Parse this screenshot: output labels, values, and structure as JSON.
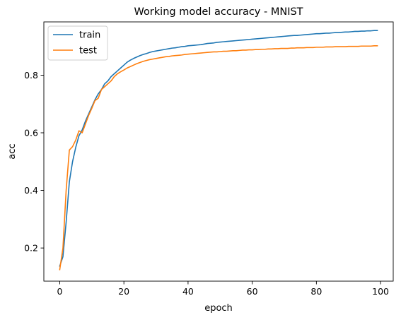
{
  "chart_data": {
    "type": "line",
    "title": "Working model accuracy - MNIST",
    "xlabel": "epoch",
    "ylabel": "acc",
    "xlim": [
      -4.95,
      103.95
    ],
    "ylim": [
      0.085,
      0.985
    ],
    "xticks": [
      0,
      20,
      40,
      60,
      80,
      100
    ],
    "yticks": [
      0.2,
      0.4,
      0.6,
      0.8
    ],
    "xtick_labels": [
      "0",
      "20",
      "40",
      "60",
      "80",
      "100"
    ],
    "ytick_labels": [
      "0.2",
      "0.4",
      "0.6",
      "0.8"
    ],
    "grid": false,
    "legend_position": "top-left",
    "series": [
      {
        "name": "train",
        "color": "#1f77b4",
        "values": [
          0.137,
          0.17,
          0.29,
          0.43,
          0.5,
          0.55,
          0.59,
          0.61,
          0.64,
          0.665,
          0.69,
          0.715,
          0.735,
          0.75,
          0.77,
          0.78,
          0.795,
          0.805,
          0.815,
          0.825,
          0.835,
          0.845,
          0.852,
          0.858,
          0.863,
          0.868,
          0.872,
          0.875,
          0.879,
          0.882,
          0.884,
          0.886,
          0.888,
          0.89,
          0.892,
          0.894,
          0.895,
          0.897,
          0.899,
          0.9,
          0.902,
          0.903,
          0.904,
          0.905,
          0.906,
          0.908,
          0.91,
          0.911,
          0.912,
          0.914,
          0.915,
          0.916,
          0.917,
          0.918,
          0.919,
          0.92,
          0.921,
          0.922,
          0.923,
          0.924,
          0.925,
          0.926,
          0.927,
          0.928,
          0.929,
          0.93,
          0.931,
          0.932,
          0.933,
          0.934,
          0.935,
          0.936,
          0.937,
          0.938,
          0.938,
          0.939,
          0.94,
          0.941,
          0.942,
          0.943,
          0.944,
          0.944,
          0.945,
          0.946,
          0.946,
          0.947,
          0.948,
          0.948,
          0.949,
          0.95,
          0.95,
          0.951,
          0.952,
          0.952,
          0.953,
          0.953,
          0.954,
          0.954,
          0.955,
          0.955
        ]
      },
      {
        "name": "test",
        "color": "#ff7f0e",
        "values": [
          0.125,
          0.2,
          0.4,
          0.54,
          0.552,
          0.575,
          0.607,
          0.6,
          0.63,
          0.66,
          0.685,
          0.712,
          0.72,
          0.75,
          0.76,
          0.77,
          0.78,
          0.795,
          0.805,
          0.812,
          0.818,
          0.825,
          0.83,
          0.835,
          0.84,
          0.844,
          0.848,
          0.851,
          0.854,
          0.856,
          0.858,
          0.86,
          0.862,
          0.864,
          0.865,
          0.867,
          0.868,
          0.869,
          0.87,
          0.872,
          0.873,
          0.874,
          0.875,
          0.876,
          0.877,
          0.878,
          0.879,
          0.88,
          0.881,
          0.881,
          0.882,
          0.883,
          0.883,
          0.884,
          0.885,
          0.885,
          0.886,
          0.887,
          0.887,
          0.888,
          0.888,
          0.889,
          0.889,
          0.89,
          0.89,
          0.891,
          0.891,
          0.892,
          0.892,
          0.893,
          0.893,
          0.893,
          0.894,
          0.894,
          0.895,
          0.895,
          0.895,
          0.896,
          0.896,
          0.896,
          0.897,
          0.897,
          0.897,
          0.898,
          0.898,
          0.898,
          0.899,
          0.899,
          0.899,
          0.899,
          0.9,
          0.9,
          0.9,
          0.9,
          0.901,
          0.901,
          0.901,
          0.901,
          0.902,
          0.902
        ]
      }
    ]
  }
}
